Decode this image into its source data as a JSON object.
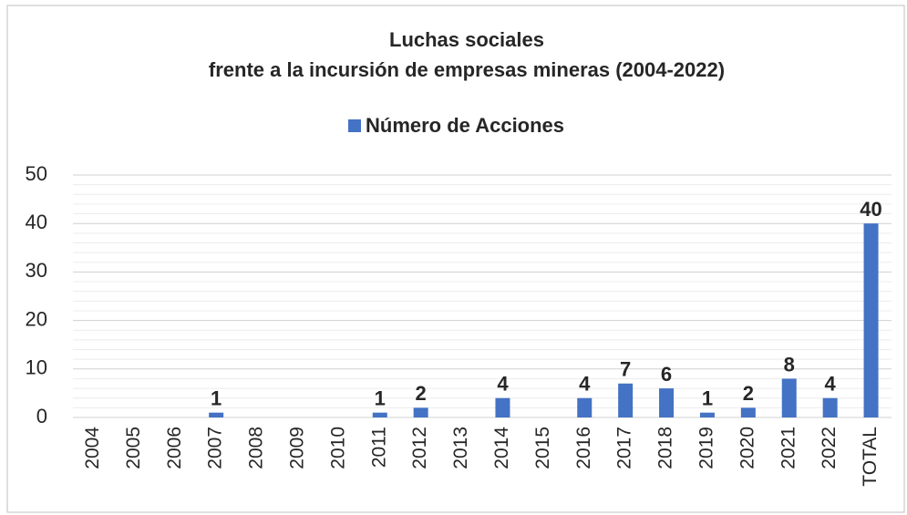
{
  "chart_data": {
    "type": "bar",
    "title": "Luchas sociales",
    "subtitle": "frente a la incursión de empresas mineras (2004-2022)",
    "categories": [
      "2004",
      "2005",
      "2006",
      "2007",
      "2008",
      "2009",
      "2010",
      "2011",
      "2012",
      "2013",
      "2014",
      "2015",
      "2016",
      "2017",
      "2018",
      "2019",
      "2020",
      "2021",
      "2022",
      "TOTAL"
    ],
    "series": [
      {
        "name": "Número de  Acciones",
        "color": "#4472c4",
        "values": [
          0,
          0,
          0,
          1,
          0,
          0,
          0,
          1,
          2,
          0,
          4,
          0,
          4,
          7,
          6,
          1,
          2,
          8,
          4,
          40
        ],
        "value_labels": [
          null,
          null,
          null,
          "1",
          null,
          null,
          null,
          "1",
          "2",
          null,
          "4",
          null,
          "4",
          "7",
          "6",
          "1",
          "2",
          "8",
          "4",
          "40"
        ]
      }
    ],
    "ylim": [
      0,
      50
    ],
    "yticks": [
      0,
      10,
      20,
      30,
      40,
      50
    ],
    "yticks_minor": [
      2,
      4,
      6,
      8,
      12,
      14,
      16,
      18,
      22,
      24,
      26,
      28,
      32,
      34,
      36,
      38,
      42,
      44,
      46,
      48
    ],
    "grid": true,
    "legend": "top"
  }
}
